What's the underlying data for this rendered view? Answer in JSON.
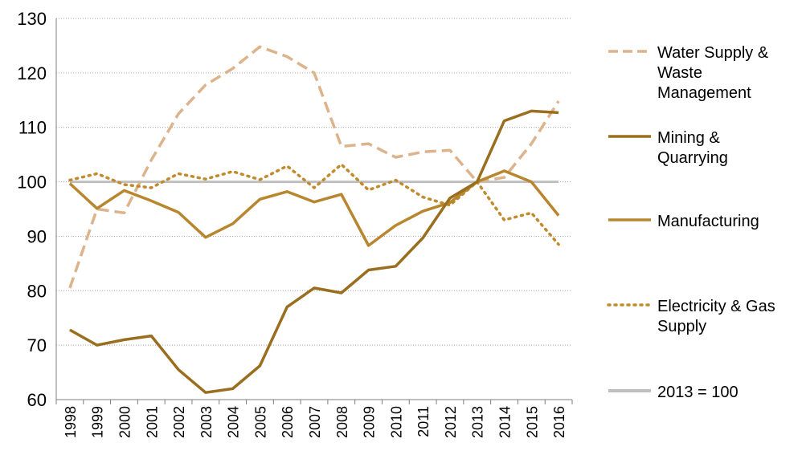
{
  "chart_data": {
    "type": "line",
    "title": "",
    "xlabel": "",
    "ylabel": "",
    "ylim": [
      60,
      130
    ],
    "yticks": [
      60,
      70,
      80,
      90,
      100,
      110,
      120,
      130
    ],
    "grid": "horizontal dotted",
    "legend_position": "right",
    "categories": [
      "1998",
      "1999",
      "2000",
      "2001",
      "2002",
      "2003",
      "2004",
      "2005",
      "2006",
      "2007",
      "2008",
      "2009",
      "2010",
      "2011",
      "2012",
      "2013",
      "2014",
      "2015",
      "2016"
    ],
    "series": [
      {
        "name": "Water Supply & Waste Management",
        "style": "dashed",
        "color": "#DDB38B",
        "values": [
          80.5,
          95.0,
          94.3,
          104.0,
          112.5,
          117.8,
          120.8,
          124.8,
          123.0,
          120.0,
          106.5,
          107.0,
          104.5,
          105.5,
          105.8,
          100.0,
          100.8,
          107.0,
          114.8
        ]
      },
      {
        "name": "Mining & Quarrying",
        "style": "solid",
        "color": "#9A6E1F",
        "values": [
          72.8,
          70.0,
          71.0,
          71.7,
          65.5,
          61.3,
          62.0,
          66.2,
          77.0,
          80.5,
          79.6,
          83.8,
          84.5,
          89.7,
          97.0,
          100.0,
          111.2,
          113.0,
          112.7
        ]
      },
      {
        "name": "Manufacturing",
        "style": "solid",
        "color": "#B8862E",
        "values": [
          99.7,
          95.1,
          98.4,
          96.5,
          94.4,
          89.8,
          92.3,
          96.8,
          98.2,
          96.3,
          97.7,
          88.3,
          92.0,
          94.6,
          96.2,
          100.0,
          102.0,
          100.0,
          93.8
        ]
      },
      {
        "name": "Electricity & Gas Supply",
        "style": "dotted",
        "color": "#C18A2C",
        "values": [
          100.3,
          101.5,
          99.5,
          98.9,
          101.5,
          100.5,
          101.9,
          100.4,
          102.9,
          98.9,
          103.2,
          98.5,
          100.3,
          97.2,
          95.7,
          100.0,
          93.0,
          94.3,
          88.5
        ]
      },
      {
        "name": "2013 = 100",
        "style": "solid",
        "color": "#BFBFBF",
        "values": [
          100,
          100,
          100,
          100,
          100,
          100,
          100,
          100,
          100,
          100,
          100,
          100,
          100,
          100,
          100,
          100,
          100,
          100,
          100
        ]
      }
    ],
    "legend": [
      [
        "Water Supply &",
        "Waste",
        "Management"
      ],
      [
        "Mining &",
        "Quarrying"
      ],
      [
        "Manufacturing"
      ],
      [
        "Electricity & Gas",
        "Supply"
      ],
      [
        "2013 = 100"
      ]
    ]
  }
}
